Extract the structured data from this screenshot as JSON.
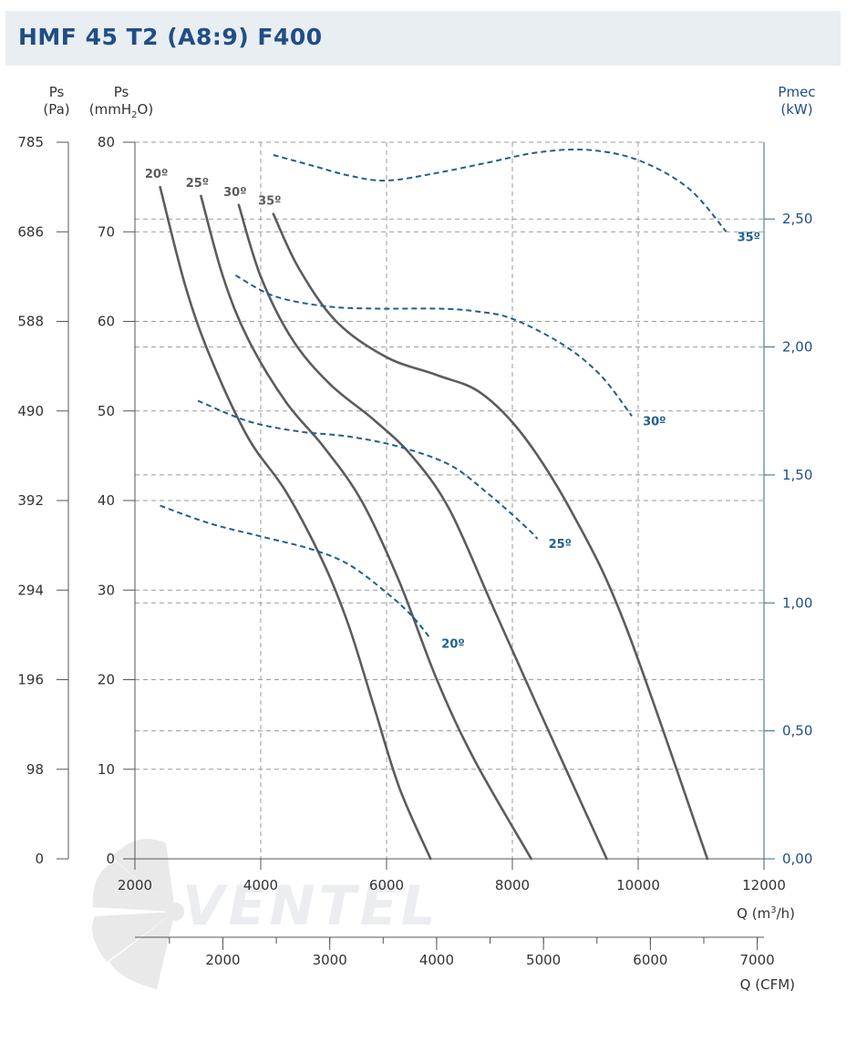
{
  "header": {
    "title": "HMF 45 T2 (A8:9) F400"
  },
  "colors": {
    "title": "#1f4e86",
    "pressure_curve": "#5c5c5c",
    "power_curve": "#1f5f95",
    "grid": "#9a9a9a",
    "right_axis": "#2a6a9a",
    "header_bg": "#e9eef3"
  },
  "watermark": {
    "text": "VENTEL",
    "icon": "fan-blade-logo"
  },
  "chart_data": {
    "type": "line",
    "axes": {
      "left_pa": {
        "label": "Ps",
        "unit": "(Pa)",
        "ticks": [
          "785",
          "686",
          "588",
          "490",
          "392",
          "294",
          "196",
          "98",
          "0"
        ]
      },
      "left_mmh2o": {
        "label": "Ps",
        "unit_pre": "(mmH",
        "unit_sub": "2",
        "unit_post": "O)",
        "ticks": [
          "80",
          "70",
          "60",
          "50",
          "40",
          "30",
          "20",
          "10",
          "0"
        ],
        "ylim": [
          0,
          80
        ]
      },
      "right_kw": {
        "label": "Pmec",
        "unit": "(kW)",
        "ticks": [
          "2,50",
          "2,00",
          "1,50",
          "1,00",
          "0,50",
          "0,00"
        ],
        "tick_values": [
          2.5,
          2.0,
          1.5,
          1.0,
          0.5,
          0.0
        ],
        "ylim": [
          0,
          2.8
        ]
      },
      "bottom_m3h": {
        "label_pre": "Q (m",
        "label_sup": "3",
        "label_post": "/h)",
        "ticks": [
          "2000",
          "4000",
          "6000",
          "8000",
          "10000",
          "12000"
        ],
        "xlim": [
          2000,
          12000
        ]
      },
      "bottom_cfm": {
        "label": "Q (CFM)",
        "ticks": [
          "2000",
          "3000",
          "4000",
          "5000",
          "6000",
          "7000"
        ],
        "tick_values": [
          2000,
          3000,
          4000,
          5000,
          6000,
          7000
        ]
      }
    },
    "grid": true,
    "pressure_series": [
      {
        "name": "20º",
        "x": [
          2400,
          2800,
          3200,
          3800,
          4400,
          5000,
          5400,
          5800,
          6200,
          6700
        ],
        "y": [
          75,
          64,
          56,
          47,
          41,
          33,
          26,
          17,
          8,
          0
        ]
      },
      {
        "name": "25º",
        "x": [
          3050,
          3400,
          3800,
          4400,
          5000,
          5600,
          6200,
          6800,
          7400,
          8300
        ],
        "y": [
          74,
          65,
          58,
          51,
          46,
          40,
          31,
          20,
          11,
          0
        ]
      },
      {
        "name": "30º",
        "x": [
          3650,
          4000,
          4500,
          5100,
          5800,
          6400,
          7000,
          7700,
          8400,
          9500
        ],
        "y": [
          73,
          65,
          58,
          53,
          49,
          45,
          39,
          28,
          17,
          0
        ]
      },
      {
        "name": "35º",
        "x": [
          4200,
          4600,
          5200,
          6000,
          6800,
          7500,
          8200,
          9000,
          9800,
          11100
        ],
        "y": [
          72,
          66,
          60,
          56,
          54,
          52,
          47,
          38,
          26,
          0
        ]
      }
    ],
    "power_series": [
      {
        "name": "20º",
        "x": [
          2400,
          3200,
          4000,
          4800,
          5400,
          6000,
          6400,
          6700
        ],
        "y": [
          1.38,
          1.31,
          1.26,
          1.21,
          1.15,
          1.04,
          0.95,
          0.86
        ]
      },
      {
        "name": "25º",
        "x": [
          3000,
          3800,
          4600,
          5400,
          6200,
          7000,
          7600,
          8200,
          8400
        ],
        "y": [
          1.79,
          1.71,
          1.67,
          1.65,
          1.61,
          1.54,
          1.43,
          1.3,
          1.25
        ]
      },
      {
        "name": "30º",
        "x": [
          3600,
          4200,
          5000,
          5800,
          6800,
          7400,
          8000,
          8800,
          9400,
          9900
        ],
        "y": [
          2.28,
          2.2,
          2.16,
          2.15,
          2.15,
          2.14,
          2.11,
          2.01,
          1.89,
          1.73
        ]
      },
      {
        "name": "35º",
        "x": [
          4200,
          4800,
          5400,
          6000,
          6800,
          7600,
          8400,
          9200,
          10000,
          10800,
          11400
        ],
        "y": [
          2.75,
          2.71,
          2.67,
          2.65,
          2.68,
          2.72,
          2.76,
          2.77,
          2.73,
          2.62,
          2.45
        ]
      }
    ]
  }
}
